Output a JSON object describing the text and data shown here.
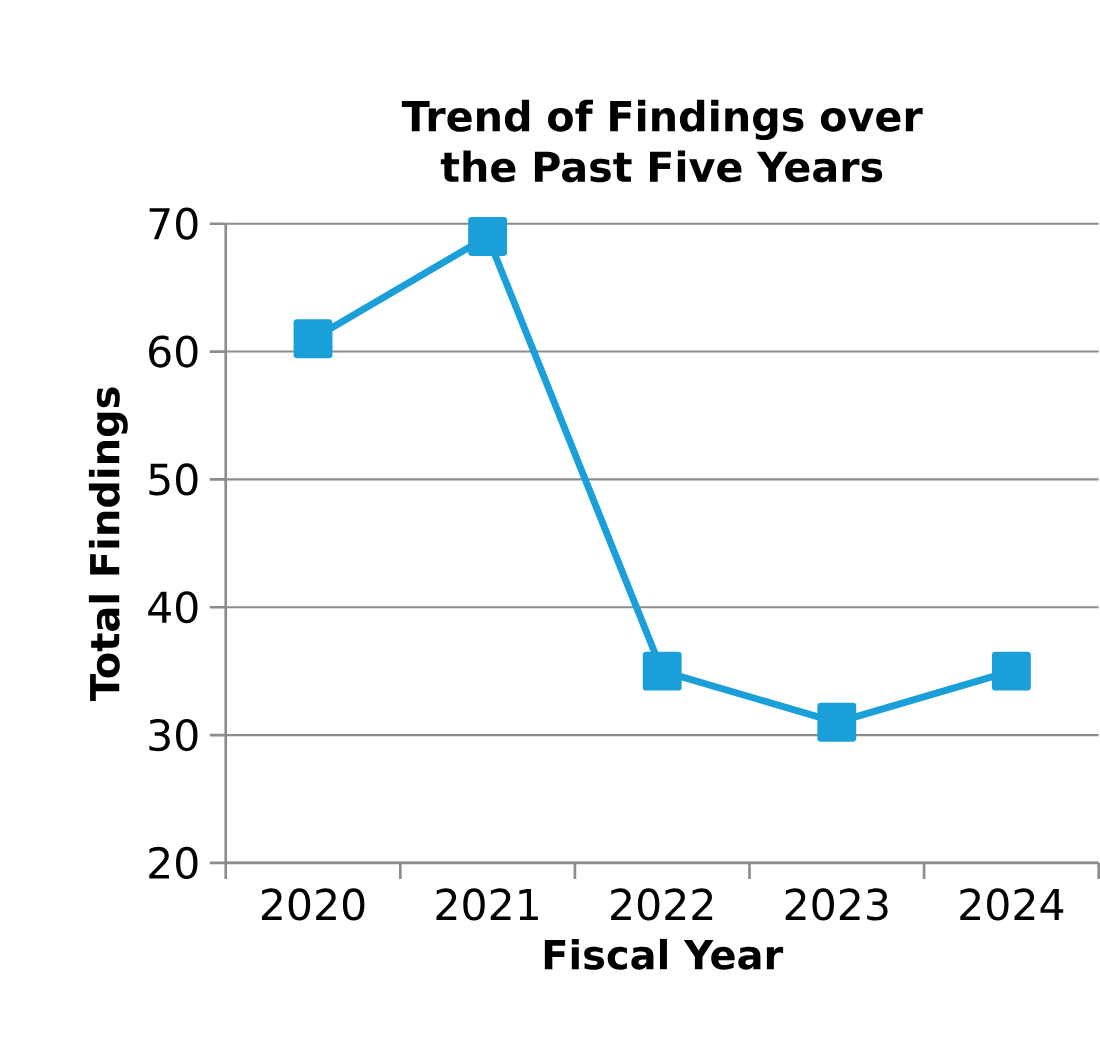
{
  "chart_data": {
    "type": "line",
    "title": "Trend of Findings over the Past Five Years",
    "xlabel": "Fiscal Year",
    "ylabel": "Total Findings",
    "categories": [
      "2020",
      "2021",
      "2022",
      "2023",
      "2024"
    ],
    "series": [
      {
        "color": "#1a9fd9",
        "values": [
          61,
          69,
          35,
          31,
          35
        ]
      }
    ],
    "ylim": [
      20,
      70
    ],
    "yticks": [
      20,
      30,
      40,
      50,
      60,
      70
    ],
    "grid": "y",
    "marker": "square",
    "line_style": "solid"
  }
}
